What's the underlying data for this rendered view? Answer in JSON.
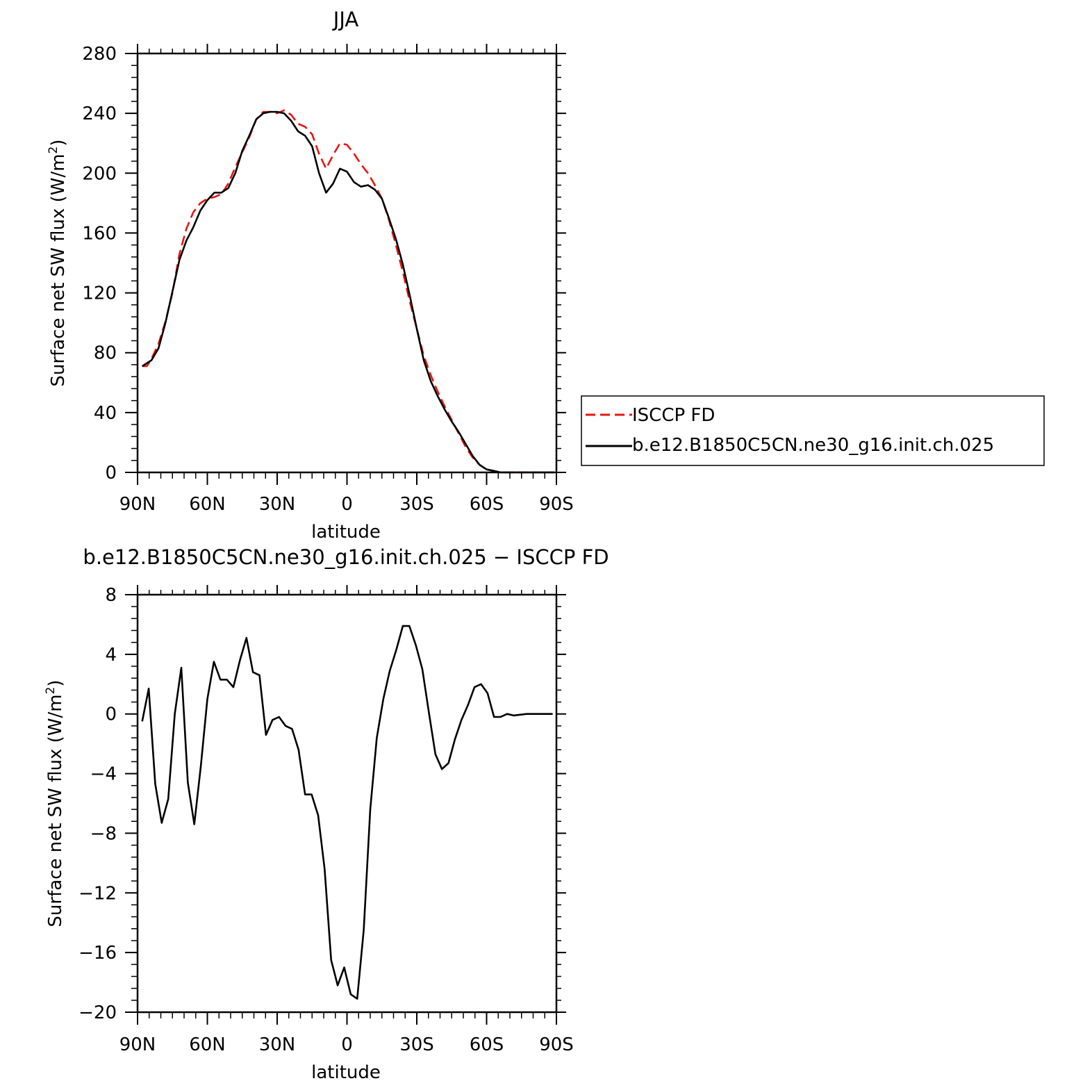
{
  "chart_data": [
    {
      "type": "line",
      "title": "JJA",
      "xlabel": "latitude",
      "ylabel": "Surface net SW flux (W/m²)",
      "ylabel_parts": [
        "Surface net SW flux (W/m",
        "2",
        ")"
      ],
      "xlim": [
        90,
        -90
      ],
      "ylim": [
        0,
        280
      ],
      "xticks": [
        90,
        60,
        30,
        0,
        -30,
        -60,
        -90
      ],
      "xtick_labels": [
        "90N",
        "60N",
        "30N",
        "0",
        "30S",
        "60S",
        "90S"
      ],
      "yticks": [
        0,
        40,
        80,
        120,
        160,
        200,
        240,
        280
      ],
      "ytick_labels": [
        "0",
        "40",
        "80",
        "120",
        "160",
        "200",
        "240",
        "280"
      ],
      "grid": false,
      "legend_position": "right-outside",
      "series": [
        {
          "name": "ISCCP FD",
          "color": "#e8150e",
          "dash": "dashed",
          "x": [
            88,
            86,
            84,
            81,
            78,
            75,
            72,
            69,
            66,
            63,
            60,
            57,
            54,
            51,
            48,
            45,
            42,
            39,
            36,
            33,
            30,
            27,
            24,
            21,
            18,
            15,
            12,
            9,
            6,
            3,
            0,
            -3,
            -6,
            -9,
            -12,
            -15,
            -18,
            -21,
            -24,
            -27,
            -30,
            -33,
            -36,
            -39,
            -42,
            -45,
            -48,
            -51,
            -54,
            -57,
            -60,
            -63,
            -66,
            -69,
            -72,
            -75,
            -78,
            -81,
            -84,
            -87,
            -89
          ],
          "y": [
            71,
            71,
            76,
            86,
            101,
            120,
            146,
            163,
            174,
            180,
            183,
            184,
            186,
            193,
            204,
            214,
            224,
            236,
            241,
            241,
            240,
            242,
            239,
            233,
            231,
            226,
            213,
            203,
            212,
            220,
            219,
            213,
            206,
            200,
            192,
            183,
            169,
            152,
            134,
            114,
            96,
            78,
            65,
            54,
            44,
            35,
            26,
            17,
            10,
            5,
            2,
            1,
            0,
            0,
            0,
            0,
            0,
            0,
            0,
            0,
            0
          ]
        },
        {
          "name": "b.e12.B1850C5CN.ne30_g16.init.ch.025",
          "color": "#000000",
          "dash": "solid",
          "x": [
            88,
            86,
            84,
            81,
            78,
            75,
            72,
            69,
            66,
            63,
            60,
            57,
            54,
            51,
            48,
            45,
            42,
            39,
            36,
            33,
            30,
            27,
            24,
            21,
            18,
            15,
            12,
            9,
            6,
            3,
            0,
            -3,
            -6,
            -9,
            -12,
            -15,
            -18,
            -21,
            -24,
            -27,
            -30,
            -33,
            -36,
            -39,
            -42,
            -45,
            -48,
            -51,
            -54,
            -57,
            -60,
            -63,
            -66,
            -69,
            -72,
            -75,
            -78,
            -81,
            -84,
            -87,
            -89
          ],
          "y": [
            71,
            73,
            75,
            83,
            100,
            121,
            142,
            155,
            164,
            175,
            182,
            187,
            187,
            190,
            200,
            215,
            225,
            236,
            240,
            241,
            241,
            240,
            235,
            228,
            225,
            218,
            200,
            187,
            193,
            203,
            201,
            194,
            191,
            192,
            189,
            183,
            170,
            156,
            139,
            118,
            96,
            75,
            61,
            51,
            42,
            34,
            27,
            19,
            11,
            5,
            2,
            1,
            0,
            0,
            0,
            0,
            0,
            0,
            0,
            0,
            0
          ]
        }
      ]
    },
    {
      "type": "line",
      "title": "b.e12.B1850C5CN.ne30_g16.init.ch.025 − ISCCP FD",
      "xlabel": "latitude",
      "ylabel": "Surface net SW flux (W/m²)",
      "ylabel_parts": [
        "Surface net SW flux (W/m",
        "2",
        ")"
      ],
      "xlim": [
        90,
        -90
      ],
      "ylim": [
        -20,
        8
      ],
      "xticks": [
        90,
        60,
        30,
        0,
        -30,
        -60,
        -90
      ],
      "xtick_labels": [
        "90N",
        "60N",
        "30N",
        "0",
        "30S",
        "60S",
        "90S"
      ],
      "yticks": [
        -20,
        -16,
        -12,
        -8,
        -4,
        0,
        4,
        8
      ],
      "ytick_labels": [
        "−20",
        "−16",
        "−12",
        "−8",
        "−4",
        "0",
        "4",
        "8"
      ],
      "grid": false,
      "series": [
        {
          "name": "",
          "color": "#000000",
          "dash": "solid",
          "x": [
            88,
            85.2,
            82.4,
            79.6,
            76.8,
            74,
            71.2,
            68.4,
            65.6,
            62.8,
            60,
            57.2,
            54.4,
            51.6,
            48.8,
            46,
            43.2,
            40.4,
            37.6,
            34.8,
            32,
            29.2,
            26.4,
            23.6,
            20.8,
            18,
            15.2,
            12.4,
            9.6,
            6.8,
            4,
            1.2,
            -1.6,
            -4.4,
            -7.2,
            -10,
            -12.8,
            -15.6,
            -18.4,
            -21.2,
            -24,
            -26.8,
            -29.6,
            -32.4,
            -35.2,
            -38,
            -40.8,
            -43.6,
            -46.4,
            -49.2,
            -52,
            -54.8,
            -57.6,
            -60.4,
            -63.2,
            -66,
            -68.8,
            -71.6,
            -74.4,
            -77.2,
            -80,
            -82.8,
            -85.6,
            -88.4
          ],
          "y": [
            -0.5,
            1.7,
            -4.7,
            -7.3,
            -5.7,
            0,
            3.1,
            -4.6,
            -7.4,
            -3.5,
            1,
            3.5,
            2.3,
            2.3,
            1.8,
            3.6,
            5.1,
            2.8,
            2.6,
            -1.4,
            -0.4,
            -0.2,
            -0.8,
            -1,
            -2.4,
            -5.4,
            -5.4,
            -6.8,
            -10.4,
            -16.5,
            -18.2,
            -17,
            -18.8,
            -19.1,
            -14.5,
            -6.4,
            -1.6,
            1,
            2.9,
            4.3,
            5.9,
            5.9,
            4.6,
            3,
            0.1,
            -2.7,
            -3.7,
            -3.3,
            -1.7,
            -0.4,
            0.6,
            1.8,
            2,
            1.4,
            -0.2,
            -0.2,
            0,
            -0.1,
            -0.05,
            0,
            0,
            0,
            0,
            0
          ]
        }
      ]
    }
  ]
}
